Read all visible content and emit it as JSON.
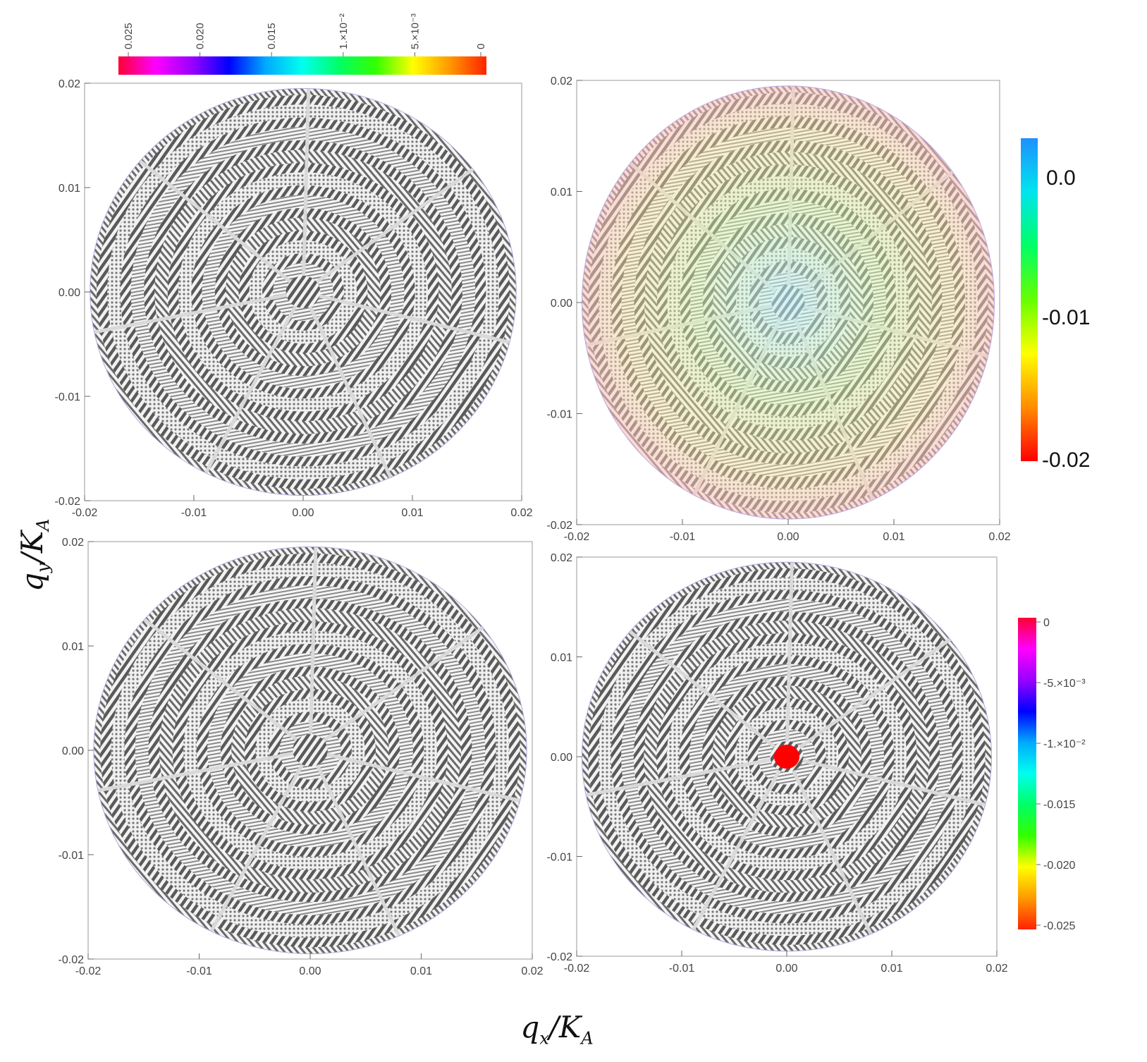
{
  "axis_titles": {
    "y": {
      "main": "q",
      "sub": "y",
      "slash": "/K",
      "sub2": "A"
    },
    "x": {
      "main": "q",
      "sub": "x",
      "slash": "/K",
      "sub2": "A"
    }
  },
  "chart_data": [
    {
      "type": "heatmap",
      "panel": "top-left",
      "x_ticks": [
        "-0.02",
        "-0.01",
        "0.00",
        "0.01",
        "0.02"
      ],
      "y_ticks": [
        "-0.02",
        "-0.01",
        "0.00",
        "0.01",
        "0.02"
      ],
      "xlim": [
        -0.02,
        0.02
      ],
      "ylim": [
        -0.02,
        0.02
      ],
      "domain": "disk of radius 0.02 centred at (0, 0)",
      "grid": false,
      "colorbar": {
        "orientation": "horizontal",
        "placement": "top",
        "labels": [
          "0.025",
          "0.020",
          "0.015",
          "1.×10⁻²",
          "5.×10⁻³",
          "0"
        ],
        "colors": [
          "#ff0033",
          "#ff00ff",
          "#9900ff",
          "#0000ff",
          "#00aaff",
          "#00ffee",
          "#00ff66",
          "#33ff00",
          "#ffff00",
          "#ff9900",
          "#ff2200"
        ]
      }
    },
    {
      "type": "heatmap",
      "panel": "top-right",
      "x_ticks": [
        "-0.02",
        "-0.01",
        "0.00",
        "0.01",
        "0.02"
      ],
      "y_ticks": [
        "-0.02",
        "-0.01",
        "0.00",
        "0.01",
        "0.02"
      ],
      "xlim": [
        -0.02,
        0.02
      ],
      "ylim": [
        -0.02,
        0.02
      ],
      "domain": "disk of radius 0.02 centred at (0, 0)",
      "grid": false,
      "colorbar": {
        "orientation": "vertical",
        "placement": "right",
        "labels": [
          "0.0",
          "-0.01",
          "-0.02"
        ],
        "colors": [
          "#1e90ff",
          "#00e5ee",
          "#00ff66",
          "#66ff00",
          "#ffff00",
          "#ff8c00",
          "#ff0000"
        ]
      }
    },
    {
      "type": "heatmap",
      "panel": "bottom-left",
      "x_ticks": [
        "-0.02",
        "-0.01",
        "0.00",
        "0.01",
        "0.02"
      ],
      "y_ticks": [
        "-0.02",
        "-0.01",
        "0.00",
        "0.01",
        "0.02"
      ],
      "xlim": [
        -0.02,
        0.02
      ],
      "ylim": [
        -0.02,
        0.02
      ],
      "domain": "disk of radius 0.02 centred at (0, 0)",
      "grid": false
    },
    {
      "type": "heatmap",
      "panel": "bottom-right",
      "x_ticks": [
        "-0.02",
        "-0.01",
        "0.00",
        "0.01",
        "0.02"
      ],
      "y_ticks": [
        "-0.02",
        "-0.01",
        "0.00",
        "0.01",
        "0.02"
      ],
      "xlim": [
        -0.02,
        0.02
      ],
      "ylim": [
        -0.02,
        0.02
      ],
      "domain": "disk of radius 0.02 centred at (0, 0)",
      "grid": false,
      "highlight": {
        "x": 0.0,
        "y": 0.0,
        "color": "#ff0000"
      },
      "colorbar": {
        "orientation": "vertical",
        "placement": "right",
        "labels": [
          "0",
          "-5.×10⁻³",
          "-1.×10⁻²",
          "-0.015",
          "-0.020",
          "-0.025"
        ],
        "colors": [
          "#ff0033",
          "#ff00ff",
          "#9900ff",
          "#0000ff",
          "#00aaff",
          "#00ffee",
          "#00ff66",
          "#33ff00",
          "#ffff00",
          "#ff9900",
          "#ff2200"
        ]
      }
    }
  ]
}
